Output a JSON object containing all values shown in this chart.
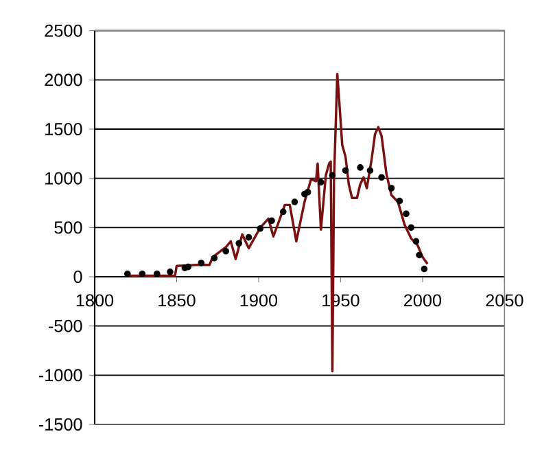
{
  "chart_data": {
    "type": "line",
    "xlim": [
      1800,
      2050
    ],
    "xticks": [
      1800,
      1850,
      1900,
      1950,
      2000,
      2050
    ],
    "ylim": [
      -1500,
      2500
    ],
    "yticks": [
      -1500,
      -1000,
      -500,
      0,
      500,
      1000,
      1500,
      2000,
      2500
    ],
    "grid": "y",
    "series": [
      {
        "color": "#7b1010",
        "marker": "none",
        "x": [
          1820,
          1849,
          1850,
          1862,
          1870,
          1872,
          1876,
          1880,
          1883,
          1886,
          1890,
          1894,
          1901,
          1906,
          1909,
          1913,
          1916,
          1919,
          1923,
          1928,
          1932,
          1935,
          1936,
          1938,
          1941,
          1943,
          1944,
          1945,
          1946,
          1948,
          1949,
          1951,
          1953,
          1955,
          1957,
          1960,
          1962,
          1964,
          1966,
          1969,
          1971,
          1973,
          1975,
          1978,
          1981,
          1985,
          1989,
          1993,
          1997,
          2000,
          2003
        ],
        "values": [
          10,
          10,
          110,
          120,
          120,
          200,
          250,
          300,
          360,
          180,
          430,
          290,
          500,
          590,
          410,
          590,
          730,
          730,
          360,
          760,
          990,
          970,
          1150,
          480,
          1030,
          1150,
          1170,
          -960,
          990,
          2060,
          1830,
          1340,
          1220,
          940,
          800,
          800,
          940,
          1010,
          900,
          1200,
          1450,
          1520,
          1430,
          1040,
          830,
          760,
          530,
          390,
          320,
          200,
          130
        ]
      },
      {
        "type": "scatter",
        "color": "#000000",
        "marker": "circle",
        "x": [
          1820,
          1829,
          1838,
          1846,
          1855,
          1857,
          1865,
          1873,
          1880,
          1888,
          1894,
          1901,
          1908,
          1915,
          1922,
          1928,
          1930,
          1938,
          1945,
          1953,
          1962,
          1968,
          1975,
          1981,
          1986,
          1990,
          1993,
          1996,
          1998,
          2001
        ],
        "values": [
          30,
          30,
          30,
          50,
          90,
          100,
          140,
          190,
          260,
          340,
          400,
          490,
          570,
          660,
          760,
          840,
          860,
          960,
          1030,
          1080,
          1110,
          1080,
          1010,
          900,
          770,
          640,
          500,
          360,
          220,
          80
        ]
      }
    ]
  }
}
